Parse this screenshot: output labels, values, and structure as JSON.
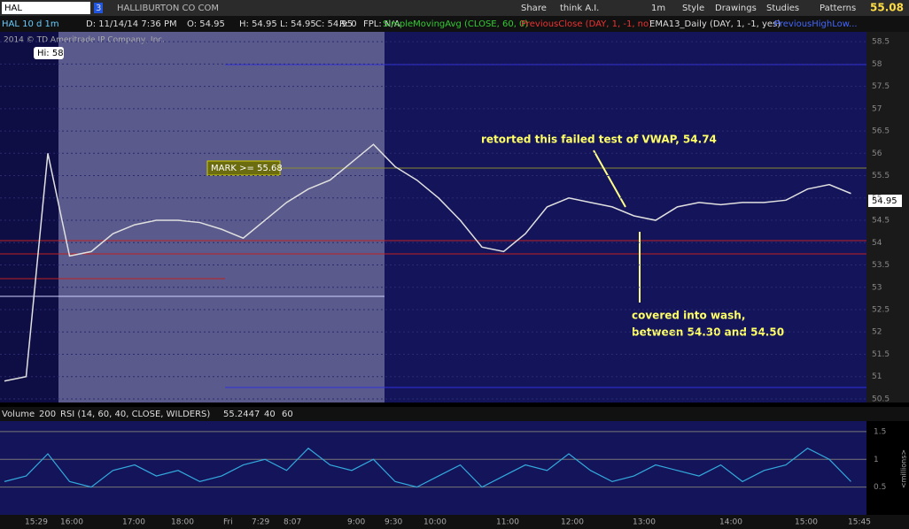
{
  "toolbar": {
    "symbol": "HAL",
    "link": "3",
    "company": "HALLIBURTON CO COM",
    "buttons": [
      "Share",
      "think A.I.",
      "1m",
      "Style",
      "Drawings",
      "Studies",
      "Patterns"
    ],
    "last": "55.08"
  },
  "status": [
    "HAL 10 d 1m",
    "D: 11/14/14 7:36 PM",
    "O: 54.95",
    "H: 54.95",
    "L: 54.95",
    "C: 54.95",
    "R: 0",
    "FPL: N/A",
    "SimpleMovingAvg (CLOSE, 60, 0)",
    "PreviousClose (DAY, 1, -1, no)",
    "EMA13_Daily (DAY, 1, -1, yes)",
    "PreviousHighLow..."
  ],
  "copyright": "2014 © TD Ameritrade IP Company, Inc.",
  "hi_label": "Hi: 58",
  "mark_label": "MARK >= 55.68",
  "price_label": "54.95",
  "annotations": [
    "retorted this failed test of VWAP, 54.74",
    "covered into wash,",
    "between 54.30 and 54.50"
  ],
  "price_axis": {
    "ylim": [
      50.42,
      58.72
    ],
    "yticks": [
      50.5,
      51,
      51.5,
      52,
      52.5,
      53,
      53.5,
      54,
      54.5,
      55,
      55.5,
      56,
      56.5,
      57,
      57.5,
      58,
      58.5
    ]
  },
  "price": [
    50.9,
    51.0,
    56.0,
    53.7,
    53.8,
    54.2,
    54.4,
    54.5,
    54.5,
    54.45,
    54.3,
    54.1,
    54.5,
    54.9,
    55.2,
    55.4,
    55.8,
    56.2,
    55.7,
    55.4,
    55.0,
    54.5,
    53.9,
    53.8,
    54.2,
    54.8,
    55.0,
    54.9,
    54.8,
    54.6,
    54.5,
    54.8,
    54.9,
    54.85,
    54.9,
    54.9,
    54.95,
    55.2,
    55.3,
    55.1
  ],
  "lower_header": [
    "Volume",
    "200",
    "RSI (14, 60, 40, CLOSE, WILDERS)",
    "55.2447",
    "40",
    "60"
  ],
  "lower_axis": {
    "ylim": [
      0,
      1.69
    ],
    "yticks": [
      0.5,
      1,
      1.5
    ],
    "unit": "<millions>"
  },
  "rsi_line": [
    0.6,
    0.7,
    1.1,
    0.6,
    0.5,
    0.8,
    0.9,
    0.7,
    0.8,
    0.6,
    0.7,
    0.9,
    1.0,
    0.8,
    1.2,
    0.9,
    0.8,
    1.0,
    0.6,
    0.5,
    0.7,
    0.9,
    0.5,
    0.7,
    0.9,
    0.8,
    1.1,
    0.8,
    0.6,
    0.7,
    0.9,
    0.8,
    0.7,
    0.9,
    0.6,
    0.8,
    0.9,
    1.2,
    1.0,
    0.6
  ],
  "time_axis": [
    "15:29",
    "16:00",
    "17:00",
    "18:00",
    "Fri",
    "7:29",
    "8:07",
    "9:00",
    "9:30",
    "10:00",
    "11:00",
    "12:00",
    "13:00",
    "14:00",
    "15:00",
    "15:45"
  ]
}
